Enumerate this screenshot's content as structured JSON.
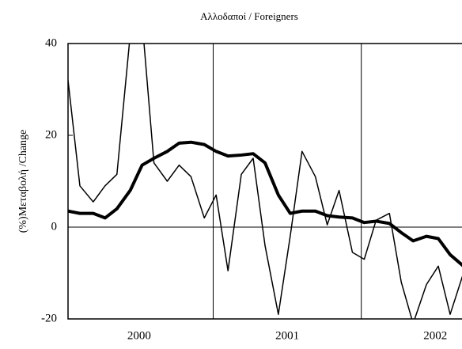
{
  "chart_data": {
    "type": "line",
    "title": "Αλλοδαποί / Foreigners",
    "ylabel": "(%)Μεταβολή /Change",
    "x": [
      2000.02,
      2000.1,
      2000.19,
      2000.27,
      2000.35,
      2000.44,
      2000.52,
      2000.6,
      2000.69,
      2000.77,
      2000.85,
      2000.94,
      2001.02,
      2001.1,
      2001.19,
      2001.27,
      2001.35,
      2001.44,
      2001.52,
      2001.6,
      2001.69,
      2001.77,
      2001.85,
      2001.94,
      2002.02,
      2002.1,
      2002.19,
      2002.27,
      2002.35,
      2002.44,
      2002.52,
      2002.6,
      2002.69
    ],
    "series": [
      {
        "color": "#000000",
        "width": 1.5,
        "values": [
          32,
          9,
          5.5,
          9,
          11.5,
          42,
          45,
          14,
          10,
          13.5,
          11,
          2,
          7,
          -9.5,
          11.5,
          15,
          -4,
          -19,
          -2,
          16.5,
          11,
          0.5,
          8,
          -5.5,
          -7,
          1.5,
          3,
          -12,
          -21,
          -12.5,
          -8.5,
          -19,
          -10
        ]
      },
      {
        "color": "#000000",
        "width": 4,
        "values": [
          3.5,
          3,
          3,
          2,
          4,
          8,
          13.5,
          15,
          16.5,
          18.3,
          18.5,
          18,
          16.5,
          15.5,
          15.7,
          16,
          14,
          7,
          3,
          3.5,
          3.5,
          2.5,
          2.2,
          2,
          1,
          1.3,
          0.8,
          -1.2,
          -3,
          -2,
          -2.5,
          -6,
          -8.5
        ]
      }
    ],
    "xlim": [
      2000.02,
      2002.68
    ],
    "xticks": [
      {
        "value": 2000.5,
        "label": "2000"
      },
      {
        "value": 2001.5,
        "label": "2001"
      },
      {
        "value": 2002.5,
        "label": "2002"
      }
    ],
    "x_gridlines": [
      2001,
      2002
    ],
    "ylim": [
      -20,
      40
    ],
    "yticks": [
      -20,
      0,
      20,
      40
    ]
  }
}
